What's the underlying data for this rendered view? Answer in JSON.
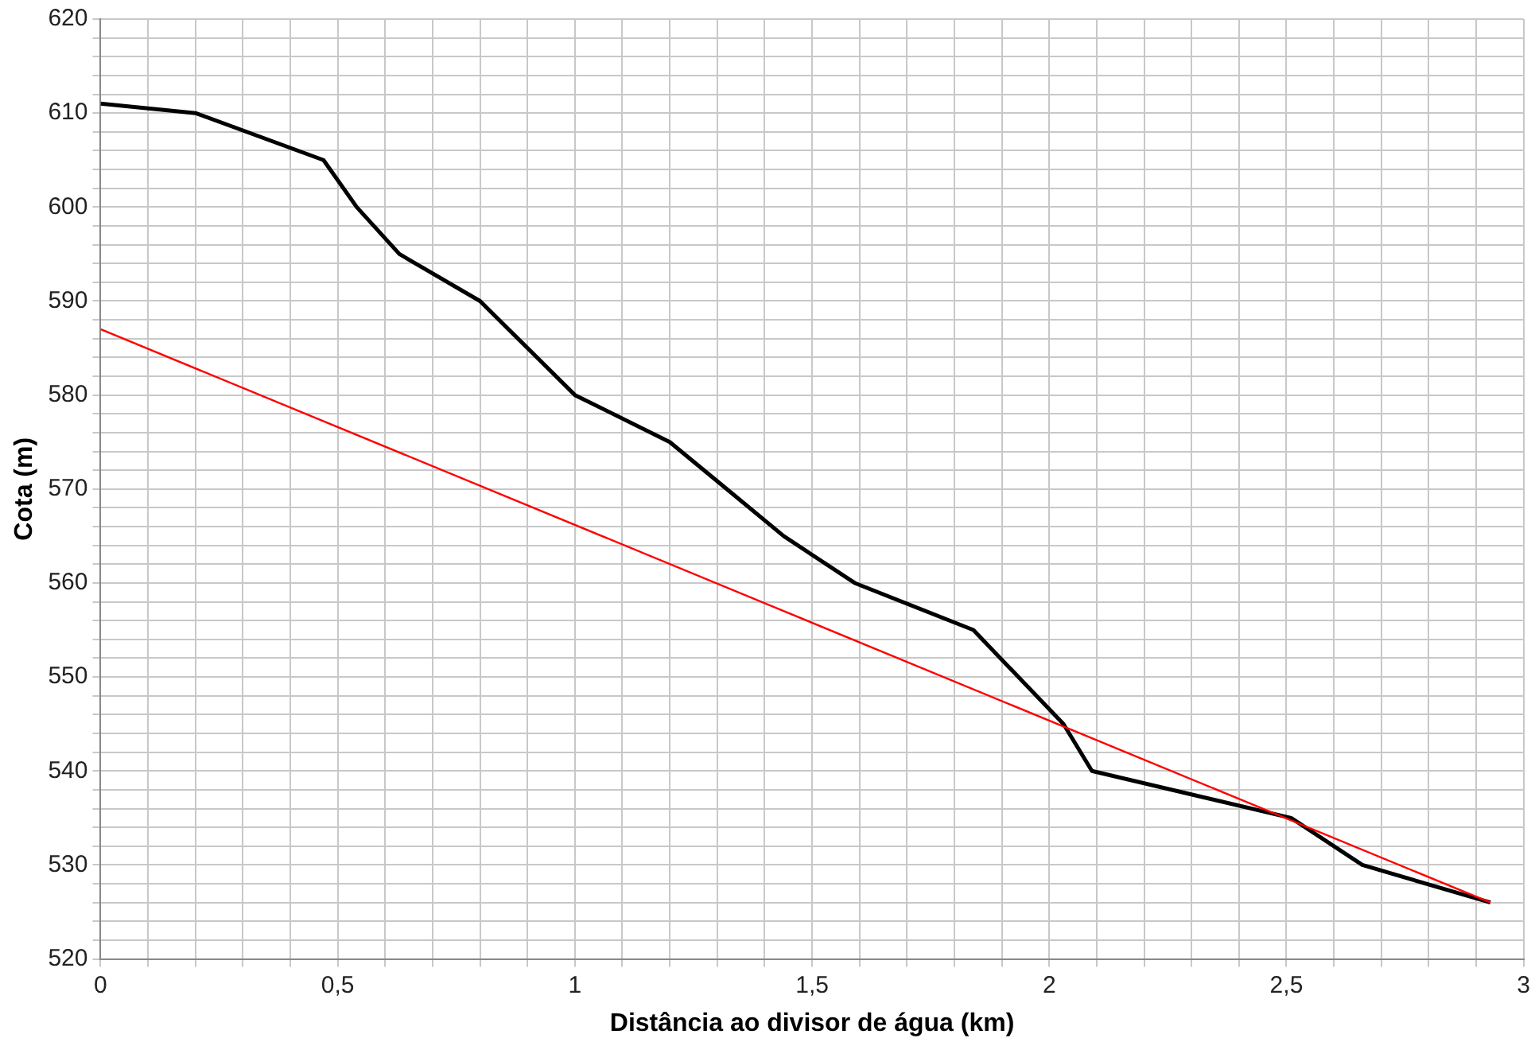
{
  "chart_data": {
    "type": "line",
    "xlabel": "Distância ao divisor de água (km)",
    "ylabel": "Cota (m)",
    "series": [
      {
        "color": "#000000",
        "x": [
          0,
          0.2,
          0.47,
          0.54,
          0.63,
          0.8,
          1.0,
          1.2,
          1.32,
          1.44,
          1.59,
          1.84,
          2.03,
          2.09,
          2.51,
          2.66,
          2.93
        ],
        "values": [
          611,
          610,
          605,
          600,
          595,
          590,
          580,
          575,
          570,
          565,
          560,
          555,
          545,
          540,
          535,
          530,
          526
        ]
      },
      {
        "color": "#ff0000",
        "x": [
          0,
          2.93
        ],
        "values": [
          587,
          526
        ]
      }
    ],
    "xlim": [
      0,
      3
    ],
    "ylim": [
      520,
      620
    ],
    "xticks": [
      0,
      {
        "value": 0.1,
        "label": null
      },
      {
        "value": 0.2,
        "label": null
      },
      {
        "value": 0.3,
        "label": null
      },
      {
        "value": 0.4,
        "label": null
      },
      {
        "value": 0.5,
        "label": "0,5"
      },
      {
        "value": 0.6,
        "label": null
      },
      {
        "value": 0.7,
        "label": null
      },
      {
        "value": 0.8,
        "label": null
      },
      {
        "value": 0.9,
        "label": null
      },
      1,
      {
        "value": 1.1,
        "label": null
      },
      {
        "value": 1.2,
        "label": null
      },
      {
        "value": 1.3,
        "label": null
      },
      {
        "value": 1.4,
        "label": null
      },
      {
        "value": 1.5,
        "label": "1,5"
      },
      {
        "value": 1.6,
        "label": null
      },
      {
        "value": 1.7,
        "label": null
      },
      {
        "value": 1.8,
        "label": null
      },
      {
        "value": 1.9,
        "label": null
      },
      2,
      {
        "value": 2.1,
        "label": null
      },
      {
        "value": 2.2,
        "label": null
      },
      {
        "value": 2.3,
        "label": null
      },
      {
        "value": 2.4,
        "label": null
      },
      {
        "value": 2.5,
        "label": "2,5"
      },
      {
        "value": 2.6,
        "label": null
      },
      {
        "value": 2.7,
        "label": null
      },
      {
        "value": 2.8,
        "label": null
      },
      {
        "value": 2.9,
        "label": null
      },
      3
    ],
    "yticks": [
      520,
      {
        "value": 522,
        "label": null
      },
      {
        "value": 524,
        "label": null
      },
      {
        "value": 526,
        "label": null
      },
      {
        "value": 528,
        "label": null
      },
      530,
      {
        "value": 532,
        "label": null
      },
      {
        "value": 534,
        "label": null
      },
      {
        "value": 536,
        "label": null
      },
      {
        "value": 538,
        "label": null
      },
      540,
      {
        "value": 542,
        "label": null
      },
      {
        "value": 544,
        "label": null
      },
      {
        "value": 546,
        "label": null
      },
      {
        "value": 548,
        "label": null
      },
      550,
      {
        "value": 552,
        "label": null
      },
      {
        "value": 554,
        "label": null
      },
      {
        "value": 556,
        "label": null
      },
      {
        "value": 558,
        "label": null
      },
      560,
      {
        "value": 562,
        "label": null
      },
      {
        "value": 564,
        "label": null
      },
      {
        "value": 566,
        "label": null
      },
      {
        "value": 568,
        "label": null
      },
      570,
      {
        "value": 572,
        "label": null
      },
      {
        "value": 574,
        "label": null
      },
      {
        "value": 576,
        "label": null
      },
      {
        "value": 578,
        "label": null
      },
      580,
      {
        "value": 582,
        "label": null
      },
      {
        "value": 584,
        "label": null
      },
      {
        "value": 586,
        "label": null
      },
      {
        "value": 588,
        "label": null
      },
      590,
      {
        "value": 592,
        "label": null
      },
      {
        "value": 594,
        "label": null
      },
      {
        "value": 596,
        "label": null
      },
      {
        "value": 598,
        "label": null
      },
      600,
      {
        "value": 602,
        "label": null
      },
      {
        "value": 604,
        "label": null
      },
      {
        "value": 606,
        "label": null
      },
      {
        "value": 608,
        "label": null
      },
      610,
      {
        "value": 612,
        "label": null
      },
      {
        "value": 614,
        "label": null
      },
      {
        "value": 616,
        "label": null
      },
      {
        "value": 618,
        "label": null
      },
      620
    ],
    "grid": true,
    "legend": false,
    "marker": "none",
    "line_style": "solid"
  }
}
